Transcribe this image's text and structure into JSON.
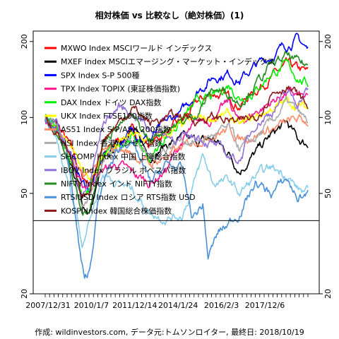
{
  "chart_data": {
    "type": "line",
    "title": "相対株価 vs 比較なし（絶対株価）(1)",
    "caption": "作成: wildinvestors.com, データ元:トムソンロイター, 最終日: 2018/10/19",
    "yscale": "log",
    "ylim": [
      20,
      220
    ],
    "yticks": [
      20,
      50,
      100,
      200
    ],
    "x_tick_labels": [
      "2007/12/31",
      "2010/1/7",
      "2011/12/14",
      "2014/1/24",
      "2016/2/3",
      "2017/12/6"
    ],
    "reference_line": 39,
    "grid": false,
    "legend_position": "top-left",
    "series": [
      {
        "name": "MXWO Index MSCIワールド インデックス",
        "color": "#ff0000",
        "anchors": [
          [
            0,
            100
          ],
          [
            0.05,
            92
          ],
          [
            0.1,
            75
          ],
          [
            0.14,
            58
          ],
          [
            0.17,
            55
          ],
          [
            0.22,
            70
          ],
          [
            0.28,
            82
          ],
          [
            0.33,
            88
          ],
          [
            0.4,
            78
          ],
          [
            0.46,
            88
          ],
          [
            0.52,
            95
          ],
          [
            0.58,
            115
          ],
          [
            0.64,
            125
          ],
          [
            0.7,
            120
          ],
          [
            0.74,
            112
          ],
          [
            0.8,
            128
          ],
          [
            0.86,
            145
          ],
          [
            0.92,
            160
          ],
          [
            0.96,
            155
          ],
          [
            1,
            150
          ]
        ]
      },
      {
        "name": "MXEF Index MSCIエマージング・マーケット・インデックス",
        "color": "#000000",
        "anchors": [
          [
            0,
            100
          ],
          [
            0.05,
            92
          ],
          [
            0.1,
            65
          ],
          [
            0.14,
            45
          ],
          [
            0.17,
            42
          ],
          [
            0.22,
            65
          ],
          [
            0.28,
            80
          ],
          [
            0.33,
            90
          ],
          [
            0.4,
            70
          ],
          [
            0.46,
            78
          ],
          [
            0.52,
            82
          ],
          [
            0.58,
            80
          ],
          [
            0.64,
            82
          ],
          [
            0.7,
            72
          ],
          [
            0.74,
            62
          ],
          [
            0.8,
            72
          ],
          [
            0.86,
            85
          ],
          [
            0.92,
            95
          ],
          [
            0.96,
            82
          ],
          [
            1,
            78
          ]
        ]
      },
      {
        "name": "SPX Index S-P 500種",
        "color": "#0000ff",
        "anchors": [
          [
            0,
            100
          ],
          [
            0.05,
            90
          ],
          [
            0.1,
            72
          ],
          [
            0.14,
            55
          ],
          [
            0.17,
            52
          ],
          [
            0.22,
            70
          ],
          [
            0.28,
            80
          ],
          [
            0.33,
            88
          ],
          [
            0.4,
            82
          ],
          [
            0.46,
            95
          ],
          [
            0.52,
            105
          ],
          [
            0.58,
            128
          ],
          [
            0.64,
            145
          ],
          [
            0.7,
            150
          ],
          [
            0.74,
            140
          ],
          [
            0.8,
            160
          ],
          [
            0.86,
            175
          ],
          [
            0.92,
            195
          ],
          [
            0.96,
            205
          ],
          [
            1,
            185
          ]
        ]
      },
      {
        "name": "TPX Index TOPIX (東証株価指数)",
        "color": "#ff1493",
        "anchors": [
          [
            0,
            100
          ],
          [
            0.05,
            90
          ],
          [
            0.1,
            70
          ],
          [
            0.14,
            52
          ],
          [
            0.17,
            55
          ],
          [
            0.22,
            62
          ],
          [
            0.28,
            65
          ],
          [
            0.33,
            60
          ],
          [
            0.4,
            55
          ],
          [
            0.46,
            62
          ],
          [
            0.52,
            80
          ],
          [
            0.58,
            95
          ],
          [
            0.64,
            100
          ],
          [
            0.7,
            115
          ],
          [
            0.74,
            95
          ],
          [
            0.8,
            105
          ],
          [
            0.86,
            115
          ],
          [
            0.92,
            125
          ],
          [
            0.96,
            122
          ],
          [
            1,
            118
          ]
        ]
      },
      {
        "name": "DAX Index ドイツ DAX指数",
        "color": "#00ee00",
        "anchors": [
          [
            0,
            100
          ],
          [
            0.05,
            88
          ],
          [
            0.1,
            68
          ],
          [
            0.14,
            48
          ],
          [
            0.17,
            52
          ],
          [
            0.22,
            70
          ],
          [
            0.28,
            78
          ],
          [
            0.33,
            85
          ],
          [
            0.4,
            68
          ],
          [
            0.46,
            85
          ],
          [
            0.52,
            98
          ],
          [
            0.58,
            115
          ],
          [
            0.64,
            120
          ],
          [
            0.7,
            135
          ],
          [
            0.74,
            120
          ],
          [
            0.8,
            128
          ],
          [
            0.86,
            150
          ],
          [
            0.92,
            160
          ],
          [
            0.96,
            145
          ],
          [
            1,
            135
          ]
        ]
      },
      {
        "name": "UKX Index FTSE100指数",
        "color": "#ffff00",
        "anchors": [
          [
            0,
            100
          ],
          [
            0.05,
            90
          ],
          [
            0.1,
            75
          ],
          [
            0.14,
            60
          ],
          [
            0.17,
            58
          ],
          [
            0.22,
            70
          ],
          [
            0.28,
            78
          ],
          [
            0.33,
            85
          ],
          [
            0.4,
            80
          ],
          [
            0.46,
            85
          ],
          [
            0.52,
            92
          ],
          [
            0.58,
            98
          ],
          [
            0.64,
            100
          ],
          [
            0.7,
            102
          ],
          [
            0.74,
            92
          ],
          [
            0.8,
            100
          ],
          [
            0.86,
            108
          ],
          [
            0.92,
            115
          ],
          [
            0.96,
            112
          ],
          [
            1,
            108
          ]
        ]
      },
      {
        "name": "AS51 Index S-P/ASX 200指数",
        "color": "#ff8c69",
        "anchors": [
          [
            0,
            100
          ],
          [
            0.05,
            88
          ],
          [
            0.1,
            70
          ],
          [
            0.14,
            57
          ],
          [
            0.17,
            60
          ],
          [
            0.22,
            72
          ],
          [
            0.28,
            75
          ],
          [
            0.33,
            72
          ],
          [
            0.4,
            65
          ],
          [
            0.46,
            70
          ],
          [
            0.52,
            75
          ],
          [
            0.58,
            82
          ],
          [
            0.64,
            86
          ],
          [
            0.7,
            90
          ],
          [
            0.74,
            82
          ],
          [
            0.8,
            86
          ],
          [
            0.86,
            90
          ],
          [
            0.92,
            95
          ],
          [
            0.96,
            98
          ],
          [
            1,
            96
          ]
        ]
      },
      {
        "name": "HSI Index 香港ハンセン指数",
        "color": "#aaaaaa",
        "anchors": [
          [
            0,
            100
          ],
          [
            0.05,
            88
          ],
          [
            0.1,
            62
          ],
          [
            0.14,
            45
          ],
          [
            0.17,
            48
          ],
          [
            0.22,
            70
          ],
          [
            0.28,
            75
          ],
          [
            0.33,
            85
          ],
          [
            0.4,
            68
          ],
          [
            0.46,
            76
          ],
          [
            0.52,
            82
          ],
          [
            0.58,
            80
          ],
          [
            0.64,
            85
          ],
          [
            0.7,
            90
          ],
          [
            0.74,
            75
          ],
          [
            0.8,
            82
          ],
          [
            0.86,
            95
          ],
          [
            0.92,
            115
          ],
          [
            0.96,
            105
          ],
          [
            1,
            95
          ]
        ]
      },
      {
        "name": "SHCOMP Index 中国 上海総合指数",
        "color": "#87ceeb",
        "anchors": [
          [
            0,
            100
          ],
          [
            0.04,
            82
          ],
          [
            0.08,
            58
          ],
          [
            0.12,
            42
          ],
          [
            0.14,
            32
          ],
          [
            0.17,
            40
          ],
          [
            0.22,
            60
          ],
          [
            0.28,
            55
          ],
          [
            0.33,
            52
          ],
          [
            0.4,
            42
          ],
          [
            0.46,
            40
          ],
          [
            0.52,
            41
          ],
          [
            0.56,
            52
          ],
          [
            0.6,
            70
          ],
          [
            0.64,
            55
          ],
          [
            0.7,
            56
          ],
          [
            0.74,
            50
          ],
          [
            0.8,
            58
          ],
          [
            0.86,
            63
          ],
          [
            0.92,
            60
          ],
          [
            0.96,
            52
          ],
          [
            1,
            50
          ]
        ]
      },
      {
        "name": "IBOV Index ブラジル ボベスパ指数",
        "color": "#9370db",
        "anchors": [
          [
            0,
            100
          ],
          [
            0.05,
            95
          ],
          [
            0.1,
            70
          ],
          [
            0.14,
            48
          ],
          [
            0.17,
            55
          ],
          [
            0.22,
            95
          ],
          [
            0.28,
            110
          ],
          [
            0.33,
            105
          ],
          [
            0.4,
            90
          ],
          [
            0.46,
            85
          ],
          [
            0.52,
            82
          ],
          [
            0.58,
            85
          ],
          [
            0.64,
            78
          ],
          [
            0.7,
            70
          ],
          [
            0.74,
            68
          ],
          [
            0.8,
            95
          ],
          [
            0.86,
            105
          ],
          [
            0.92,
            125
          ],
          [
            0.96,
            115
          ],
          [
            1,
            130
          ]
        ]
      },
      {
        "name": "NIFTY Index インド NIFTY指数",
        "color": "#228b22",
        "anchors": [
          [
            0,
            100
          ],
          [
            0.05,
            85
          ],
          [
            0.1,
            60
          ],
          [
            0.14,
            42
          ],
          [
            0.17,
            45
          ],
          [
            0.22,
            80
          ],
          [
            0.28,
            95
          ],
          [
            0.33,
            100
          ],
          [
            0.4,
            80
          ],
          [
            0.46,
            92
          ],
          [
            0.52,
            95
          ],
          [
            0.58,
            105
          ],
          [
            0.64,
            130
          ],
          [
            0.7,
            125
          ],
          [
            0.74,
            115
          ],
          [
            0.8,
            135
          ],
          [
            0.86,
            160
          ],
          [
            0.92,
            175
          ],
          [
            0.96,
            165
          ],
          [
            1,
            160
          ]
        ]
      },
      {
        "name": "RTSIUSD Index ロシア RTS指数 USD",
        "color": "#4a90d9",
        "anchors": [
          [
            0,
            100
          ],
          [
            0.04,
            92
          ],
          [
            0.08,
            75
          ],
          [
            0.11,
            45
          ],
          [
            0.13,
            30
          ],
          [
            0.15,
            22
          ],
          [
            0.17,
            25
          ],
          [
            0.2,
            45
          ],
          [
            0.24,
            62
          ],
          [
            0.28,
            75
          ],
          [
            0.32,
            82
          ],
          [
            0.36,
            68
          ],
          [
            0.4,
            55
          ],
          [
            0.46,
            65
          ],
          [
            0.52,
            62
          ],
          [
            0.56,
            40
          ],
          [
            0.6,
            45
          ],
          [
            0.62,
            28
          ],
          [
            0.66,
            35
          ],
          [
            0.7,
            38
          ],
          [
            0.74,
            42
          ],
          [
            0.8,
            55
          ],
          [
            0.86,
            50
          ],
          [
            0.92,
            57
          ],
          [
            0.96,
            48
          ],
          [
            1,
            50
          ]
        ]
      },
      {
        "name": "KOSPI Index 韓国総合株価指数",
        "color": "#8b1a1a",
        "anchors": [
          [
            0,
            100
          ],
          [
            0.05,
            88
          ],
          [
            0.1,
            65
          ],
          [
            0.14,
            47
          ],
          [
            0.17,
            52
          ],
          [
            0.22,
            82
          ],
          [
            0.28,
            95
          ],
          [
            0.33,
            110
          ],
          [
            0.4,
            95
          ],
          [
            0.46,
            100
          ],
          [
            0.52,
            102
          ],
          [
            0.58,
            98
          ],
          [
            0.64,
            100
          ],
          [
            0.7,
            98
          ],
          [
            0.74,
            95
          ],
          [
            0.8,
            100
          ],
          [
            0.86,
            125
          ],
          [
            0.92,
            135
          ],
          [
            0.96,
            122
          ],
          [
            1,
            110
          ]
        ]
      }
    ]
  }
}
